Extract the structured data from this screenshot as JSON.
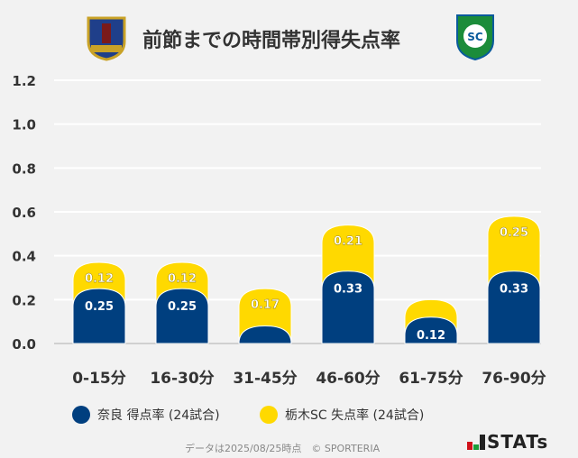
{
  "title": "前節までの時間帯別得失点率",
  "logos": {
    "left": "奈良クラブ emblem",
    "right": "栃木SC emblem"
  },
  "chart_data": {
    "type": "bar",
    "stacked": true,
    "categories": [
      "0-15分",
      "16-30分",
      "31-45分",
      "46-60分",
      "61-75分",
      "76-90分"
    ],
    "series": [
      {
        "name": "奈良 得点率 (24試合)",
        "color": "#003f7f",
        "values": [
          0.25,
          0.25,
          0.08,
          0.33,
          0.12,
          0.33
        ],
        "labels": [
          "0.25",
          "0.25",
          "",
          "0.33",
          "0.12",
          "0.33"
        ]
      },
      {
        "name": "栃木SC 失点率 (24試合)",
        "color": "#ffd900",
        "values": [
          0.12,
          0.12,
          0.17,
          0.21,
          0.08,
          0.25
        ],
        "labels": [
          "0.12",
          "0.12",
          "0.17",
          "0.21",
          "",
          "0.25"
        ]
      }
    ],
    "yticks": [
      "0.0",
      "0.2",
      "0.4",
      "0.6",
      "0.8",
      "1.0",
      "1.2"
    ],
    "ylim": [
      0,
      1.2
    ],
    "grid": true,
    "legend": "bottom"
  },
  "footer": "データは2025/08/25時点　© SPORTERIA",
  "brand": "STATs"
}
